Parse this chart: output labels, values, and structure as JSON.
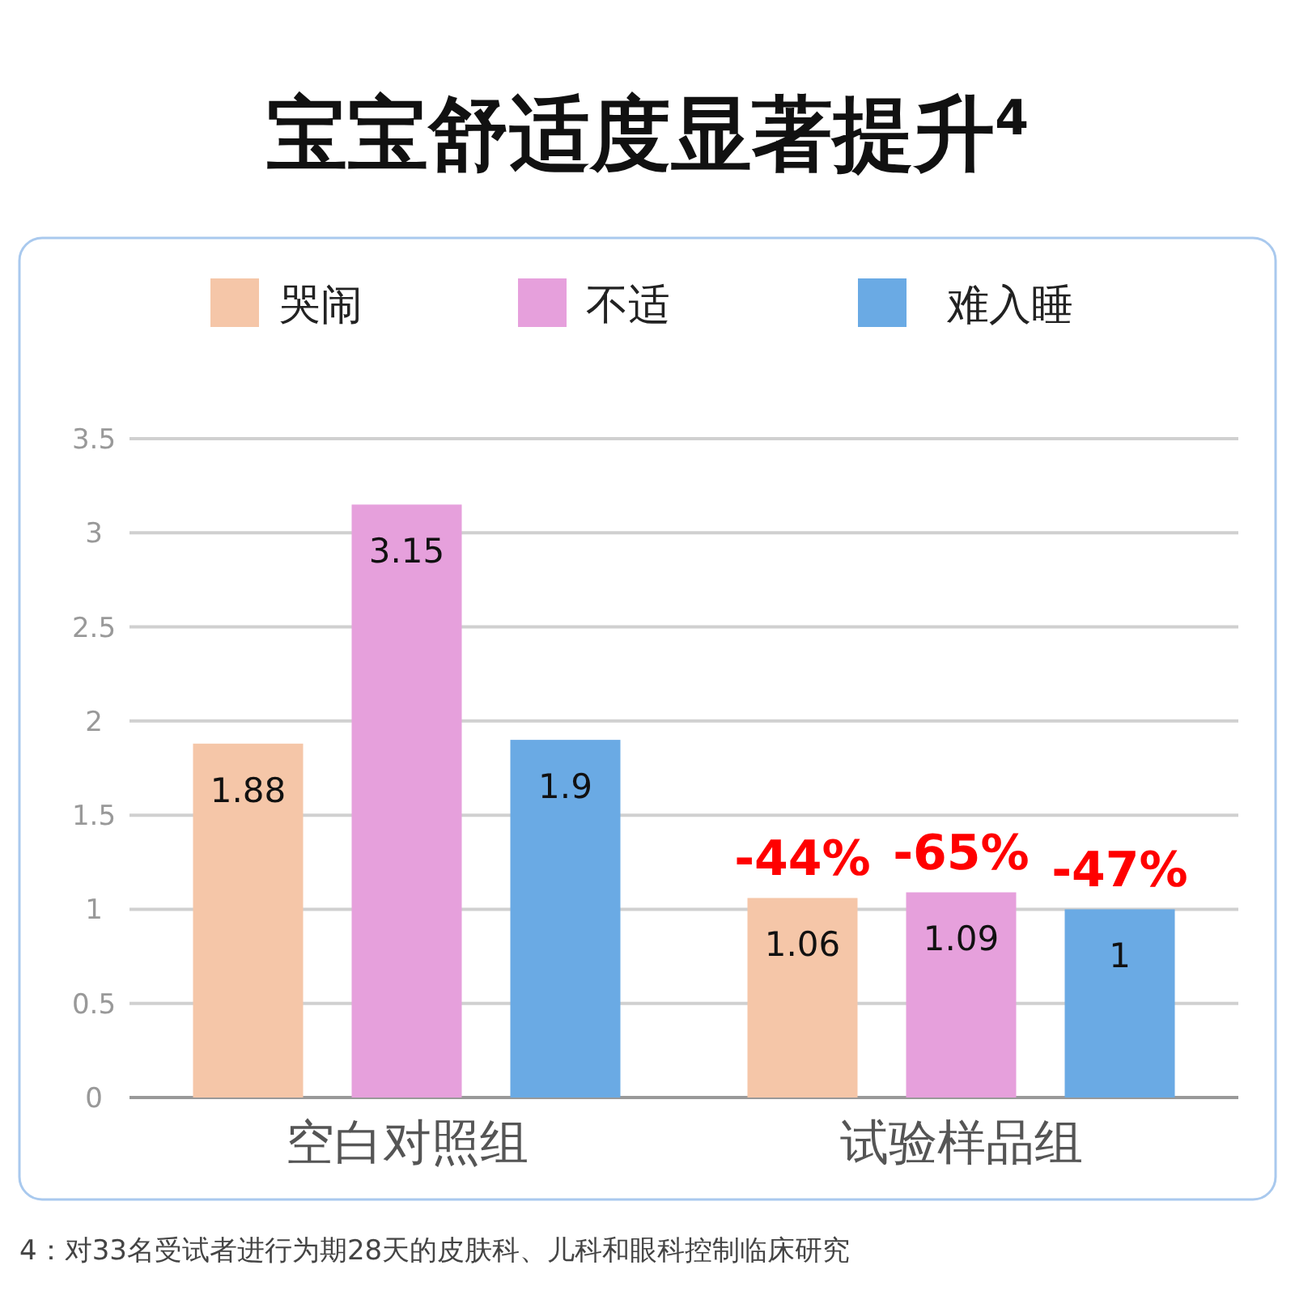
{
  "chart_data": {
    "type": "bar",
    "title": "宝宝舒适度显著提升$^{4}$",
    "categories": [
      "空白对照组",
      "试验样品组"
    ],
    "series": [
      {
        "name": "哭闹",
        "color": "#f5c6a8",
        "values": [
          1.88,
          1.06
        ]
      },
      {
        "name": "不适",
        "color": "#e6a0dc",
        "values": [
          3.15,
          1.09
        ]
      },
      {
        "name": "难入睡",
        "color": "#6aaae4",
        "values": [
          1.9,
          1
        ]
      }
    ],
    "ylim": [
      0,
      3.5
    ],
    "yticks": [
      0,
      0.5,
      1,
      1.5,
      2,
      2.5,
      3,
      3.5
    ],
    "grid": "y",
    "legend": "top",
    "data_labels": true,
    "annotations": [
      "-44%",
      "-65%",
      "-47%",
      "4：对33名受试者进行为期28天的皮肤科、儿科和眼科控制临床研究"
    ]
  }
}
